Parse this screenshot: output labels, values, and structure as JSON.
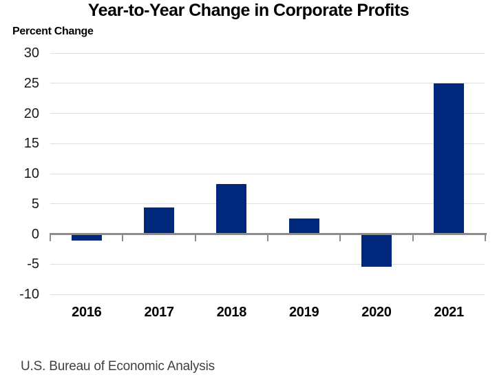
{
  "title": "Year-to-Year Change in Corporate Profits",
  "axis_unit_label": "Percent Change",
  "source": "U.S. Bureau of Economic Analysis",
  "colors": {
    "bar": "#00297E",
    "gridline": "#dedede",
    "axis": "#8c8c8c",
    "title_text": "#000000",
    "tick_text": "#1a1a1a",
    "source_text": "#3f3f3f"
  },
  "chart_data": {
    "type": "bar",
    "title": "Year-to-Year Change in Corporate Profits",
    "xlabel": "",
    "ylabel": "Percent Change",
    "categories": [
      "2016",
      "2017",
      "2018",
      "2019",
      "2020",
      "2021"
    ],
    "values": [
      -1.1,
      4.4,
      8.3,
      2.6,
      -5.4,
      25.0
    ],
    "ylim": [
      -10,
      30
    ],
    "yticks": [
      30,
      25,
      20,
      15,
      10,
      5,
      0,
      -5,
      -10
    ],
    "grid": true,
    "legend": false,
    "bar_color": "#00297E",
    "source": "U.S. Bureau of Economic Analysis"
  }
}
